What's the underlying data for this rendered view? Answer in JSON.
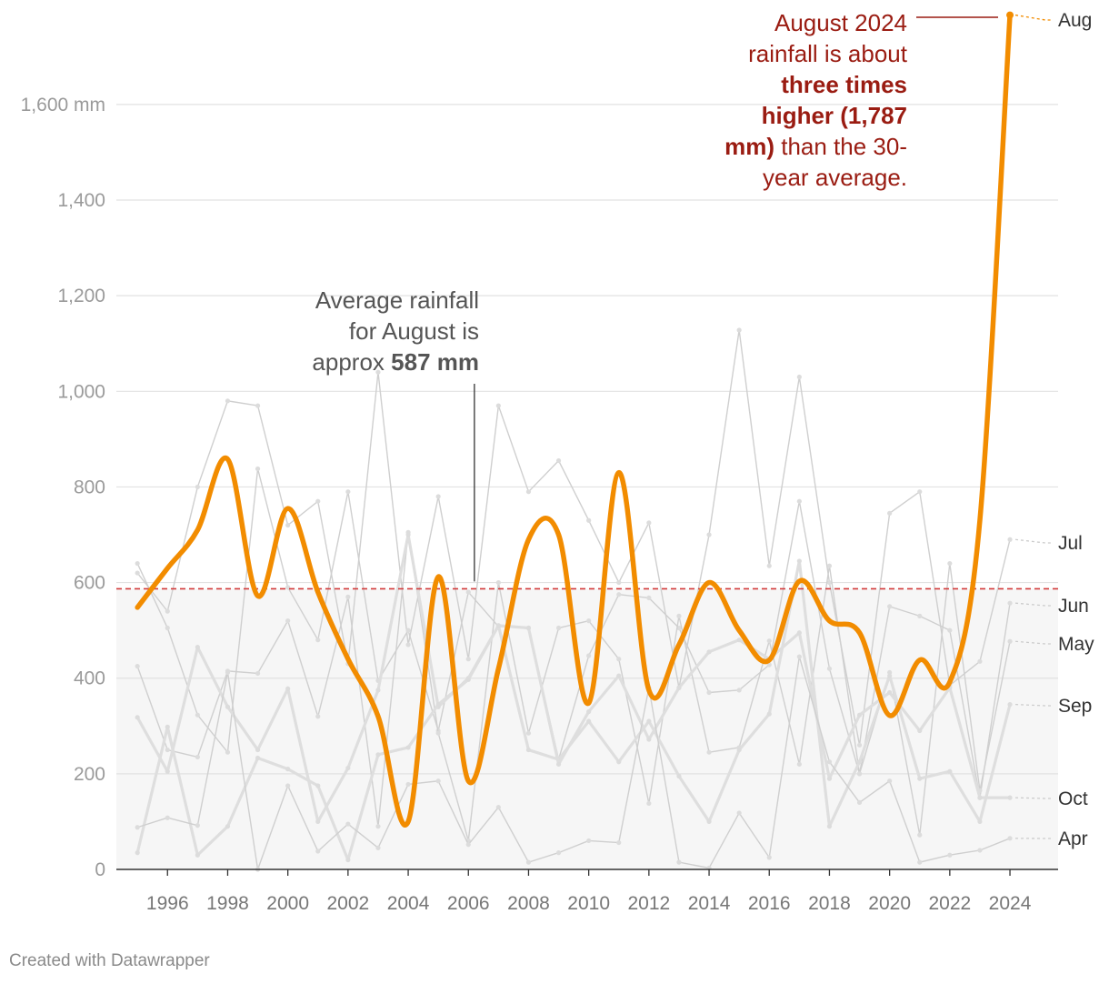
{
  "chart_data": {
    "type": "line",
    "title": "",
    "xlabel": "",
    "ylabel": "",
    "x": [
      1995,
      1996,
      1997,
      1998,
      1999,
      2000,
      2001,
      2002,
      2003,
      2004,
      2005,
      2006,
      2007,
      2008,
      2009,
      2010,
      2011,
      2012,
      2013,
      2014,
      2015,
      2016,
      2017,
      2018,
      2019,
      2020,
      2021,
      2022,
      2023,
      2024
    ],
    "xticks": [
      1996,
      1998,
      2000,
      2002,
      2004,
      2006,
      2008,
      2010,
      2012,
      2014,
      2016,
      2018,
      2020,
      2022,
      2024
    ],
    "xlim": [
      1994.3,
      2025.6
    ],
    "ylim": [
      0,
      1790
    ],
    "yticks": [
      0,
      200,
      400,
      600,
      800,
      1000,
      1200,
      1400,
      1600
    ],
    "ytick_labels": [
      "0",
      "200",
      "400",
      "600",
      "800",
      "1,000",
      "1,200",
      "1,400",
      "1,600 mm"
    ],
    "highlight_series": "Aug",
    "average_line": {
      "value": 587,
      "label": "Average August"
    },
    "series": [
      {
        "name": "Aug",
        "values": [
          548,
          630,
          710,
          858,
          572,
          755,
          580,
          440,
          320,
          100,
          612,
          185,
          420,
          690,
          700,
          348,
          830,
          375,
          470,
          600,
          500,
          438,
          603,
          520,
          495,
          322,
          438,
          392,
          730,
          1787
        ]
      },
      {
        "name": "Jul",
        "values": [
          620,
          540,
          800,
          980,
          970,
          720,
          770,
          430,
          1040,
          470,
          780,
          440,
          970,
          790,
          855,
          730,
          600,
          725,
          380,
          700,
          1128,
          635,
          1030,
          600,
          260,
          745,
          790,
          385,
          435,
          690
        ]
      },
      {
        "name": "Jun",
        "values": [
          640,
          505,
          323,
          245,
          838,
          590,
          480,
          790,
          395,
          500,
          290,
          580,
          508,
          505,
          230,
          447,
          575,
          568,
          505,
          370,
          375,
          428,
          770,
          420,
          200,
          550,
          530,
          500,
          150,
          557
        ]
      },
      {
        "name": "May",
        "values": [
          425,
          250,
          235,
          415,
          410,
          520,
          320,
          570,
          90,
          705,
          285,
          60,
          600,
          285,
          505,
          520,
          440,
          138,
          530,
          245,
          255,
          478,
          220,
          635,
          200,
          412,
          72,
          640,
          165,
          477
        ]
      },
      {
        "name": "Sep",
        "values": [
          318,
          205,
          465,
          340,
          250,
          378,
          100,
          212,
          375,
          700,
          340,
          400,
          510,
          250,
          230,
          310,
          225,
          310,
          195,
          100,
          250,
          325,
          645,
          90,
          225,
          405,
          190,
          205,
          100,
          345
        ]
      },
      {
        "name": "Oct",
        "values": [
          35,
          298,
          30,
          90,
          233,
          210,
          175,
          20,
          240,
          255,
          345,
          397,
          510,
          505,
          220,
          330,
          405,
          272,
          380,
          455,
          480,
          440,
          495,
          190,
          323,
          370,
          290,
          380,
          150,
          150
        ]
      },
      {
        "name": "Apr",
        "values": [
          88,
          108,
          92,
          412,
          0,
          175,
          38,
          95,
          45,
          178,
          185,
          52,
          130,
          15,
          35,
          60,
          56,
          380,
          15,
          3,
          118,
          25,
          445,
          225,
          140,
          185,
          15,
          30,
          40,
          65
        ]
      }
    ],
    "series_labels": [
      "Aug",
      "Jul",
      "Jun",
      "May",
      "Sep",
      "Oct",
      "Apr"
    ],
    "annotations": {
      "average": {
        "line1": "Average rainfall",
        "line2": "for August is",
        "line3_prefix": "approx ",
        "line3_bold": "587 mm",
        "x": 2006.2
      },
      "peak": {
        "line1": "August 2024",
        "line2": "rainfall is about",
        "line3_bold": "three times",
        "line4_bold": "higher (1,787",
        "line5_bold": "mm)",
        "line5_rest": " than the 30-",
        "line6": "year average."
      }
    }
  },
  "colors": {
    "highlight": "#f28c00",
    "context": "#cfcfcf",
    "context_thick": "#dedede",
    "average_line": "#d23a3a",
    "annotation_red": "#9a1c12",
    "shade": "#f6f6f6",
    "grid": "#e2e2e2"
  },
  "credit": "Created with Datawrapper"
}
